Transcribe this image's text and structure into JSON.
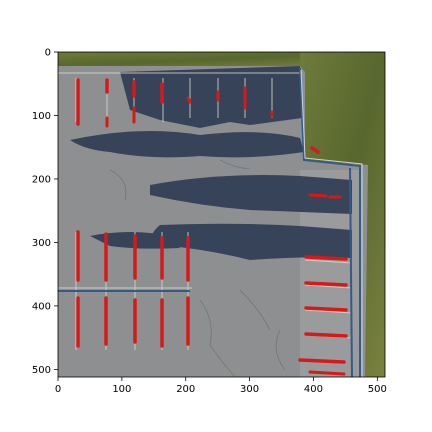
{
  "figure": {
    "x_ticks": [
      "0",
      "100",
      "200",
      "300",
      "400",
      "500"
    ],
    "y_ticks": [
      "0",
      "100",
      "200",
      "300",
      "400",
      "500"
    ],
    "image_description_colors": {
      "pavement": "#8d8e8f",
      "pavement_light": "#a4a5a6",
      "shadow": "#2f3d55",
      "grass": "#6f7a3a",
      "grass_dark": "#4b5a2a",
      "marking": "#d8d6c8",
      "overlay_red": "#d61a1a",
      "curb_blue": "#355a86"
    }
  }
}
